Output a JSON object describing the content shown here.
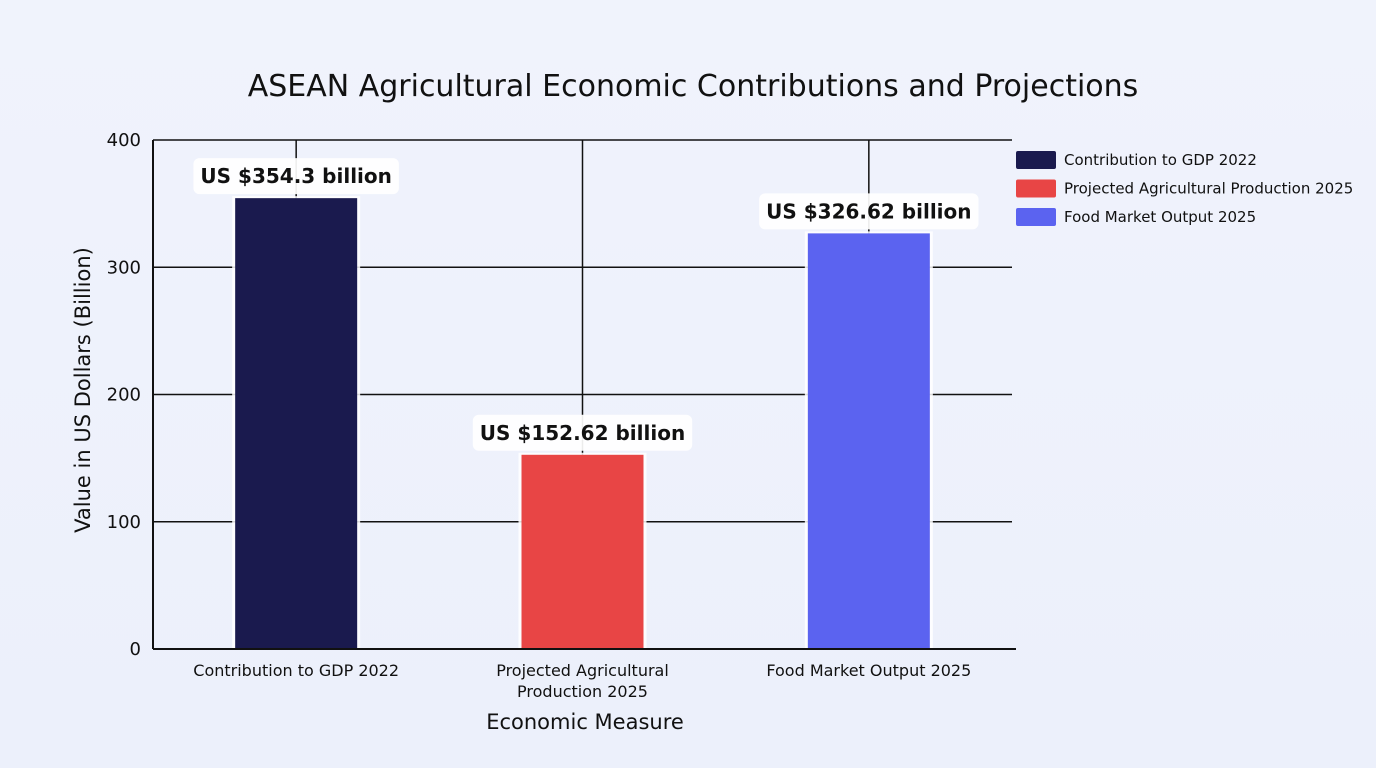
{
  "chart_data": {
    "type": "bar",
    "title": "ASEAN Agricultural Economic Contributions and Projections",
    "xlabel": "Economic Measure",
    "ylabel": "Value in US Dollars (Billion)",
    "ylim": [
      0,
      400
    ],
    "yticks": [
      0,
      100,
      200,
      300,
      400
    ],
    "grid": true,
    "legend_position": "top-right outside",
    "categories": [
      [
        "Contribution to GDP 2022"
      ],
      [
        "Projected Agricultural",
        "Production 2025"
      ],
      [
        "Food Market Output 2025"
      ]
    ],
    "values": [
      354.3,
      152.62,
      326.62
    ],
    "data_labels": [
      "US $354.3 billion",
      "US $152.62 billion",
      "US $326.62 billion"
    ],
    "colors": [
      "#1a1a4e",
      "#e84545",
      "#5b63f0"
    ],
    "legend": [
      "Contribution to GDP 2022",
      "Projected Agricultural Production 2025",
      "Food Market Output 2025"
    ]
  }
}
